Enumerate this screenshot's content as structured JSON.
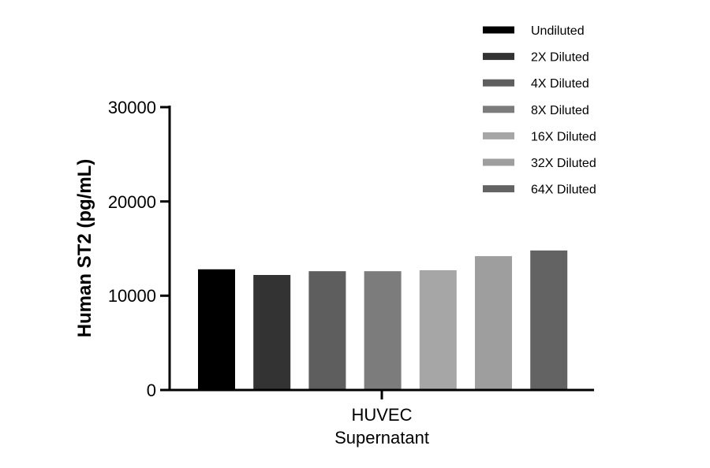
{
  "chart_data": {
    "type": "bar",
    "title": "",
    "ylabel": "Human ST2 (pg/mL)",
    "xlabel": "",
    "category_label_lines": [
      "HUVEC",
      "Supernatant"
    ],
    "ylim": [
      0,
      30000
    ],
    "yticks": [
      0,
      10000,
      20000,
      30000
    ],
    "ytick_labels": [
      "0",
      "10000",
      "20000",
      "30000"
    ],
    "grid": false,
    "legend_position": "top-right",
    "series": [
      {
        "name": "Undiluted",
        "value": 12800,
        "color": "#000000"
      },
      {
        "name": "2X Diluted",
        "value": 12200,
        "color": "#333333"
      },
      {
        "name": "4X Diluted",
        "value": 12600,
        "color": "#5e5e5e"
      },
      {
        "name": "8X Diluted",
        "value": 12600,
        "color": "#7c7c7c"
      },
      {
        "name": "16X Diluted",
        "value": 12700,
        "color": "#a6a6a6"
      },
      {
        "name": "32X Diluted",
        "value": 14200,
        "color": "#9e9e9e"
      },
      {
        "name": "64X Diluted",
        "value": 14800,
        "color": "#636363"
      }
    ]
  }
}
